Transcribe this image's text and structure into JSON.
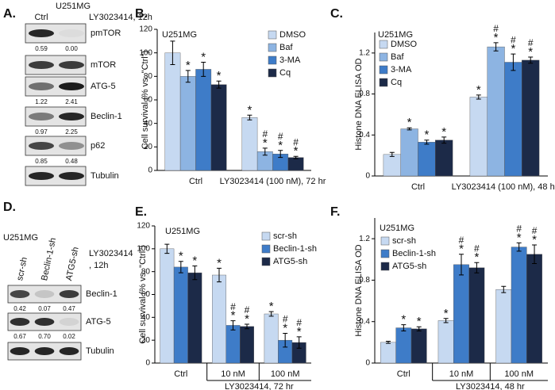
{
  "blots": [
    {
      "panel": "A.",
      "cell_line": "U251MG",
      "lanes": [
        "Ctrl",
        "LY3023414, 12h"
      ],
      "rows": [
        {
          "label": "pmTOR",
          "quant": [
            "0.59",
            "0.00"
          ]
        },
        {
          "label": "mTOR"
        },
        {
          "label": "ATG-5",
          "quant": [
            "1.22",
            "2.41"
          ]
        },
        {
          "label": "Beclin-1",
          "quant": [
            "0.97",
            "2.25"
          ]
        },
        {
          "label": "p62",
          "quant": [
            "0.85",
            "0.48"
          ]
        },
        {
          "label": "Tubulin"
        }
      ]
    },
    {
      "panel": "D.",
      "cell_line": "U251MG",
      "lanes": [
        "scr-sh",
        "Beclin-1-sh",
        "ATG5-sh"
      ],
      "treatment": [
        "LY3023414",
        ", 12h"
      ],
      "rows": [
        {
          "label": "Beclin-1",
          "quant": [
            "0.42",
            "0.07",
            "0.47"
          ]
        },
        {
          "label": "ATG-5",
          "quant": [
            "0.67",
            "0.70",
            "0.02"
          ]
        },
        {
          "label": "Tubulin"
        }
      ]
    }
  ],
  "chart_data": [
    {
      "type": "bar",
      "panel": "B.",
      "title": "U251MG",
      "y_label": "Cell survival (% vs. \"Ctrl\")",
      "categories": [
        "Ctrl",
        "LY3023414 (100 nM), 72 hr"
      ],
      "ylim": [
        0,
        120
      ],
      "yticks": [
        0,
        20,
        40,
        60,
        80,
        100,
        120
      ],
      "series": [
        {
          "name": "DMSO",
          "color": "#c6d9f1",
          "values": [
            100,
            45
          ],
          "errors": [
            10,
            2
          ],
          "sig": [
            null,
            [
              "*"
            ]
          ]
        },
        {
          "name": "Baf",
          "color": "#8db4e2",
          "values": [
            80,
            16
          ],
          "errors": [
            5,
            3
          ],
          "sig": [
            [
              "*"
            ],
            [
              "#",
              "*"
            ]
          ]
        },
        {
          "name": "3-MA",
          "color": "#3e7cc8",
          "values": [
            86,
            14
          ],
          "errors": [
            6,
            3
          ],
          "sig": [
            [
              "*"
            ],
            [
              "#",
              "*"
            ]
          ]
        },
        {
          "name": "Cq",
          "color": "#1c2a48",
          "values": [
            73,
            11
          ],
          "errors": [
            3,
            1
          ],
          "sig": [
            [
              "*"
            ],
            [
              "#",
              "*"
            ]
          ]
        }
      ]
    },
    {
      "type": "bar",
      "panel": "C.",
      "title": "U251MG",
      "y_label": "Histone DNA ELISA OD",
      "categories": [
        "Ctrl",
        "LY3023414 (100 nM), 48 hr"
      ],
      "ylim": [
        0,
        1.4
      ],
      "yticks": [
        0,
        0.4,
        0.8,
        1.2
      ],
      "series": [
        {
          "name": "DMSO",
          "color": "#c6d9f1",
          "values": [
            0.21,
            0.77
          ],
          "errors": [
            0.02,
            0.02
          ],
          "sig": [
            null,
            [
              "*"
            ]
          ]
        },
        {
          "name": "Baf",
          "color": "#8db4e2",
          "values": [
            0.46,
            1.26
          ],
          "errors": [
            0.01,
            0.04
          ],
          "sig": [
            [
              "*"
            ],
            [
              "#",
              "*"
            ]
          ]
        },
        {
          "name": "3-MA",
          "color": "#3e7cc8",
          "values": [
            0.33,
            1.11
          ],
          "errors": [
            0.02,
            0.08
          ],
          "sig": [
            [
              "*"
            ],
            [
              "#",
              "*"
            ]
          ]
        },
        {
          "name": "Cq",
          "color": "#1c2a48",
          "values": [
            0.35,
            1.13
          ],
          "errors": [
            0.03,
            0.03
          ],
          "sig": [
            [
              "*"
            ],
            [
              "#",
              "*"
            ]
          ]
        }
      ]
    },
    {
      "type": "bar",
      "panel": "E.",
      "title": "U251MG",
      "y_label": "Cell survival (% vs. \"Ctrl\")",
      "categories": [
        "Ctrl",
        "10 nM",
        "100 nM"
      ],
      "group_label": "LY3023414, 72 hr",
      "ylim": [
        0,
        120
      ],
      "yticks": [
        0,
        20,
        40,
        60,
        80,
        100,
        120
      ],
      "series": [
        {
          "name": "scr-sh",
          "color": "#c6d9f1",
          "values": [
            100,
            77,
            43
          ],
          "errors": [
            4,
            6,
            2
          ],
          "sig": [
            null,
            [
              "*"
            ],
            [
              "*"
            ]
          ]
        },
        {
          "name": "Beclin-1-sh",
          "color": "#3e7cc8",
          "values": [
            84,
            33,
            20
          ],
          "errors": [
            5,
            4,
            6
          ],
          "sig": [
            [
              "*"
            ],
            [
              "#",
              "*"
            ],
            [
              "#",
              "*"
            ]
          ]
        },
        {
          "name": "ATG5-sh",
          "color": "#1c2a48",
          "values": [
            79,
            32,
            18
          ],
          "errors": [
            6,
            2,
            5
          ],
          "sig": [
            [
              "*"
            ],
            [
              "#",
              "*"
            ],
            [
              "#",
              "*"
            ]
          ]
        }
      ]
    },
    {
      "type": "bar",
      "panel": "F.",
      "title": "U251MG",
      "y_label": "Histone DNA ELISA OD",
      "categories": [
        "Ctrl",
        "10 nM",
        "100 nM"
      ],
      "group_label": "LY3023414, 48 hr",
      "ylim": [
        0,
        1.4
      ],
      "yticks": [
        0,
        0.4,
        0.8,
        1.2
      ],
      "series": [
        {
          "name": "scr-sh",
          "color": "#c6d9f1",
          "values": [
            0.2,
            0.41,
            0.71
          ],
          "errors": [
            0.01,
            0.02,
            0.03
          ],
          "sig": [
            null,
            [
              "*"
            ],
            null
          ]
        },
        {
          "name": "Beclin-1-sh",
          "color": "#3e7cc8",
          "values": [
            0.34,
            0.95,
            1.12
          ],
          "errors": [
            0.03,
            0.1,
            0.04
          ],
          "sig": [
            [
              "*"
            ],
            [
              "#",
              "*"
            ],
            [
              "#",
              "*"
            ]
          ]
        },
        {
          "name": "ATG5-sh",
          "color": "#1c2a48",
          "values": [
            0.33,
            0.92,
            1.05
          ],
          "errors": [
            0.02,
            0.05,
            0.09
          ],
          "sig": [
            [
              "*"
            ],
            [
              "#",
              "*"
            ],
            [
              "#",
              "*"
            ]
          ]
        }
      ]
    }
  ]
}
